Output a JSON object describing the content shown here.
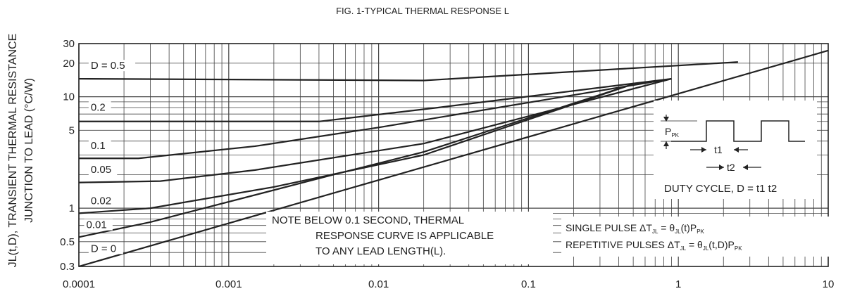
{
  "chart_data": {
    "type": "line",
    "title": "FIG. 1-TYPICAL THERMAL RESPONSE L",
    "ylabel_line1": "JL(t,D), TRANSIENT THERMAL RESISTANCE",
    "ylabel_line2": "JUNCTION TO LEAD (°C/W)",
    "xscale": "log",
    "yscale": "log",
    "xlim": [
      0.0001,
      10
    ],
    "ylim": [
      0.3,
      30
    ],
    "grid": true,
    "x_ticks": [
      {
        "v": 0.0001,
        "label": "0.0001"
      },
      {
        "v": 0.001,
        "label": "0.001"
      },
      {
        "v": 0.01,
        "label": "0.01"
      },
      {
        "v": 0.1,
        "label": "0.1"
      },
      {
        "v": 1,
        "label": "1"
      },
      {
        "v": 10,
        "label": "10"
      }
    ],
    "y_ticks": [
      {
        "v": 0.3,
        "label": "0.3"
      },
      {
        "v": 0.5,
        "label": "0.5"
      },
      {
        "v": 1,
        "label": "1"
      },
      {
        "v": 5,
        "label": "5"
      },
      {
        "v": 10,
        "label": "10"
      },
      {
        "v": 20,
        "label": "20"
      },
      {
        "v": 30,
        "label": "30"
      }
    ],
    "series": [
      {
        "name": "D = 0.5",
        "x": [
          0.0001,
          0.02,
          2.5
        ],
        "y": [
          14.5,
          14.0,
          20.5
        ]
      },
      {
        "name": "0.2",
        "x": [
          0.0001,
          0.004,
          0.025,
          0.9
        ],
        "y": [
          6.0,
          6.0,
          8.0,
          14.5
        ]
      },
      {
        "name": "0.1",
        "x": [
          0.0001,
          0.00025,
          0.0015,
          0.01,
          0.9
        ],
        "y": [
          2.8,
          2.8,
          3.6,
          5.3,
          14.5
        ]
      },
      {
        "name": "0.05",
        "x": [
          0.0001,
          0.00035,
          0.0015,
          0.02,
          0.9
        ],
        "y": [
          1.7,
          1.75,
          2.2,
          3.8,
          14.5
        ]
      },
      {
        "name": "0.02",
        "x": [
          0.0001,
          0.0003,
          0.002,
          0.02,
          0.5
        ],
        "y": [
          0.9,
          1.0,
          1.55,
          3.0,
          13.0
        ]
      },
      {
        "name": "0.01",
        "x": [
          0.0001,
          0.0003,
          0.005,
          0.02,
          0.5
        ],
        "y": [
          0.55,
          0.75,
          2.0,
          3.2,
          13.0
        ]
      },
      {
        "name": "D = 0",
        "x": [
          0.0001,
          10
        ],
        "y": [
          0.3,
          26
        ]
      }
    ],
    "annotations": {
      "note": [
        "NOTE BELOW 0.1 SECOND, THERMAL",
        "RESPONSE CURVE IS APPLICABLE",
        "TO ANY LEAD LENGTH(L)."
      ],
      "single_pulse": {
        "text": "SINGLE PULSE ",
        "delta": "Δ",
        "T": "T",
        "sub1": "JL",
        "eq": " = θ",
        "sub2": "JL",
        "rest": "(t)P",
        "sub3": "PK"
      },
      "repetitive": {
        "text": "REPETITIVE PULSES ",
        "delta": "Δ",
        "T": "T",
        "sub1": "JL",
        "eq": " = θ",
        "sub2": "JL",
        "rest": "(t,D)P",
        "sub3": "PK"
      },
      "inset_ppk": "P",
      "inset_ppk_sub": "PK",
      "inset_t1": "t1",
      "inset_t2": "t2",
      "duty_cycle": "DUTY CYCLE, D = t1 t2"
    }
  }
}
